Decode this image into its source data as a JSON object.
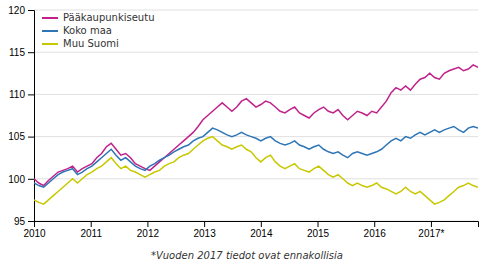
{
  "chart_data": {
    "type": "line",
    "footnote": "*Vuoden 2017 tiedot ovat ennakollisia",
    "x": [
      2010,
      2010.0851,
      2010.1702,
      2010.2553,
      2010.3404,
      2010.4255,
      2010.5107,
      2010.5958,
      2010.6809,
      2010.766,
      2010.8511,
      2010.9362,
      2011.0213,
      2011.1064,
      2011.1915,
      2011.2766,
      2011.3617,
      2011.4468,
      2011.532,
      2011.6171,
      2011.7022,
      2011.7873,
      2011.8724,
      2011.9575,
      2012.0426,
      2012.1277,
      2012.2128,
      2012.2979,
      2012.383,
      2012.4682,
      2012.5533,
      2012.6384,
      2012.7235,
      2012.8086,
      2012.8937,
      2012.9788,
      2013.0639,
      2013.149,
      2013.2341,
      2013.3192,
      2013.4043,
      2013.4895,
      2013.5746,
      2013.6597,
      2013.7448,
      2013.8299,
      2013.915,
      2014.0001,
      2014.0852,
      2014.1703,
      2014.2554,
      2014.3405,
      2014.4257,
      2014.5108,
      2014.5959,
      2014.681,
      2014.7661,
      2014.8512,
      2014.9363,
      2015.0214,
      2015.1065,
      2015.1916,
      2015.2767,
      2015.3618,
      2015.447,
      2015.5321,
      2015.6172,
      2015.7023,
      2015.7874,
      2015.8725,
      2015.9576,
      2016.0427,
      2016.1278,
      2016.2129,
      2016.298,
      2016.3832,
      2016.4683,
      2016.5534,
      2016.6385,
      2016.7236,
      2016.8087,
      2016.8938,
      2016.9789,
      2017.064,
      2017.1491,
      2017.2342,
      2017.3193,
      2017.4045,
      2017.4896,
      2017.5747,
      2017.6598,
      2017.7449,
      2017.83
    ],
    "series": [
      {
        "name": "Pääkaupunkiseutu",
        "color": "#c0228a",
        "values": [
          100.0,
          99.5,
          99.2,
          99.8,
          100.3,
          100.8,
          101.0,
          101.2,
          101.5,
          100.8,
          101.2,
          101.5,
          101.8,
          102.5,
          103.0,
          103.8,
          104.2,
          103.5,
          102.8,
          103.0,
          102.5,
          101.8,
          101.5,
          101.2,
          101.0,
          101.5,
          102.0,
          102.5,
          103.0,
          103.5,
          104.0,
          104.5,
          105.0,
          105.5,
          106.2,
          107.0,
          107.5,
          108.0,
          108.5,
          109.0,
          108.5,
          108.0,
          108.5,
          109.2,
          109.5,
          109.0,
          108.5,
          108.8,
          109.2,
          109.0,
          108.5,
          108.0,
          107.8,
          108.2,
          108.5,
          107.8,
          107.5,
          107.2,
          107.8,
          108.2,
          108.5,
          108.0,
          107.8,
          108.2,
          107.5,
          107.0,
          107.5,
          108.0,
          107.8,
          107.5,
          108.0,
          107.8,
          108.5,
          109.2,
          110.2,
          110.8,
          110.5,
          111.0,
          110.5,
          111.2,
          111.8,
          112.0,
          112.5,
          112.0,
          111.8,
          112.5,
          112.8,
          113.0,
          113.2,
          112.8,
          113.0,
          113.5,
          113.2
        ]
      },
      {
        "name": "Koko maa",
        "color": "#2e75b6",
        "values": [
          99.5,
          99.2,
          99.0,
          99.5,
          100.0,
          100.5,
          100.8,
          101.0,
          101.2,
          100.5,
          100.8,
          101.2,
          101.5,
          102.0,
          102.5,
          103.0,
          103.5,
          102.8,
          102.2,
          102.5,
          102.0,
          101.5,
          101.2,
          101.0,
          101.5,
          101.8,
          102.2,
          102.5,
          102.8,
          103.2,
          103.5,
          103.8,
          104.0,
          104.5,
          104.8,
          105.0,
          105.5,
          106.0,
          105.8,
          105.5,
          105.2,
          105.0,
          105.2,
          105.5,
          105.2,
          105.0,
          104.8,
          104.5,
          104.8,
          105.0,
          104.5,
          104.2,
          104.0,
          104.2,
          104.5,
          104.0,
          103.8,
          103.5,
          103.8,
          104.0,
          103.5,
          103.2,
          103.0,
          103.2,
          102.8,
          102.5,
          103.0,
          103.2,
          103.0,
          102.8,
          103.0,
          103.2,
          103.5,
          104.0,
          104.5,
          104.8,
          104.5,
          105.0,
          104.8,
          105.2,
          105.5,
          105.2,
          105.5,
          105.8,
          105.5,
          105.8,
          106.0,
          106.2,
          105.8,
          105.5,
          106.0,
          106.2,
          106.0
        ]
      },
      {
        "name": "Muu Suomi",
        "color": "#c8c800",
        "values": [
          97.5,
          97.2,
          97.0,
          97.5,
          98.0,
          98.5,
          99.0,
          99.5,
          100.0,
          99.5,
          100.0,
          100.5,
          100.8,
          101.2,
          101.5,
          102.0,
          102.5,
          101.8,
          101.2,
          101.5,
          101.0,
          100.8,
          100.5,
          100.2,
          100.5,
          100.8,
          101.0,
          101.5,
          101.8,
          102.0,
          102.5,
          102.8,
          103.0,
          103.5,
          104.0,
          104.5,
          104.8,
          105.0,
          104.5,
          104.0,
          103.8,
          103.5,
          103.8,
          104.0,
          103.5,
          103.2,
          102.5,
          102.0,
          102.5,
          102.8,
          102.0,
          101.5,
          101.2,
          101.5,
          101.8,
          101.2,
          101.0,
          100.8,
          101.2,
          101.5,
          101.0,
          100.5,
          100.2,
          100.5,
          100.0,
          99.5,
          99.2,
          99.5,
          99.2,
          99.0,
          99.2,
          99.5,
          99.0,
          98.8,
          98.5,
          98.2,
          98.5,
          99.0,
          98.5,
          98.2,
          98.5,
          98.0,
          97.5,
          97.0,
          97.2,
          97.5,
          98.0,
          98.5,
          99.0,
          99.2,
          99.5,
          99.2,
          99.0
        ]
      }
    ],
    "xlim": [
      2010.0,
      2017.83
    ],
    "xticks": [
      2010,
      2011,
      2012,
      2013,
      2014,
      2015,
      2016,
      {
        "value": 2017,
        "label": "2017*"
      }
    ],
    "ylim": [
      95,
      120
    ],
    "yticks": [
      95,
      100,
      105,
      110,
      115,
      120
    ],
    "grid": true,
    "legend": "upper-left"
  }
}
